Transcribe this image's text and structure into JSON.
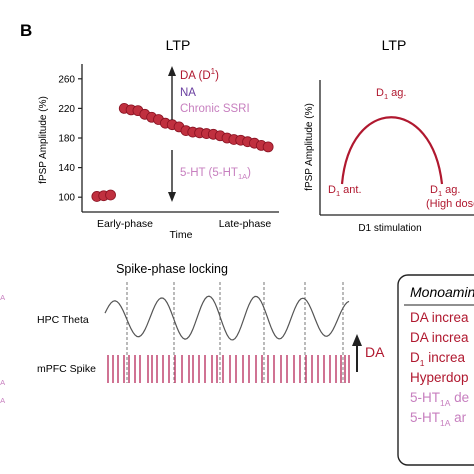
{
  "panel_label": "B",
  "colors": {
    "red": "#b0182f",
    "dot": "#c0303f",
    "dot_edge": "#8a1222",
    "purple": "#6a3fa0",
    "pink": "#c77fbf",
    "magenta": "#c24a8a",
    "spike": "#c55078",
    "axis": "#222222",
    "wave": "#555555"
  },
  "chart_data": [
    {
      "type": "scatter",
      "title": "LTP",
      "xlabel": "Time",
      "ylabel": "fPSP Amplitude (%)",
      "ylim": [
        80,
        280
      ],
      "yticks": [
        100,
        140,
        180,
        220,
        260
      ],
      "phase_labels": [
        "Early-phase",
        "Late-phase"
      ],
      "xlim": [
        0,
        27
      ],
      "series": [
        {
          "x": [
            1,
            2,
            3,
            5,
            6,
            7,
            8,
            9,
            10,
            11,
            12,
            13,
            14,
            15,
            16,
            17,
            18,
            19,
            20,
            21,
            22,
            23,
            24,
            25,
            26
          ],
          "y": [
            101,
            102,
            103,
            220,
            218,
            217,
            212,
            208,
            205,
            200,
            198,
            195,
            190,
            188,
            187,
            186,
            185,
            183,
            180,
            178,
            177,
            175,
            173,
            170,
            168
          ]
        }
      ],
      "annotations": {
        "up_lines": [
          {
            "text": "DA (D",
            "sub": "1",
            "tail": ")",
            "color": "red"
          },
          {
            "text": "NA",
            "color": "purple"
          },
          {
            "text": "Chronic SSRI",
            "color": "pink"
          }
        ],
        "down_line": {
          "text": "5-HT (5-HT",
          "sub": "1A",
          "tail": ")",
          "color": "pink"
        }
      }
    },
    {
      "type": "line",
      "title": "LTP",
      "xlabel": "D1 stimulation",
      "ylabel": "fPSP Amplitude (%)",
      "curve": "inverted-U",
      "labels": [
        {
          "text": "D",
          "sub": "1",
          "tail": " ag."
        },
        {
          "text": "D",
          "sub": "1",
          "tail": " ant."
        },
        {
          "text": "D",
          "sub": "1",
          "tail": " ag."
        },
        {
          "text": "(High dose)"
        }
      ]
    },
    {
      "type": "line",
      "title": "Spike-phase locking",
      "series_labels": [
        "HPC Theta",
        "mPFC Spike"
      ],
      "arrow_label": "DA"
    }
  ],
  "legend_box": {
    "title": "Monoamine",
    "rows": [
      {
        "text": "DA increa",
        "color": "red"
      },
      {
        "text": "DA increa",
        "color": "red"
      },
      {
        "text": "D",
        "sub": "1",
        "tail": " increa",
        "color": "red"
      },
      {
        "text": "Hyperdop",
        "color": "red"
      },
      {
        "text": "5-HT",
        "sub": "1A",
        "tail": " de",
        "color": "pink"
      },
      {
        "text": "5-HT",
        "sub": "1A",
        "tail": " ar",
        "color": "pink"
      }
    ]
  },
  "left_edge_fragments": [
    "1A",
    "1A",
    "2A"
  ]
}
